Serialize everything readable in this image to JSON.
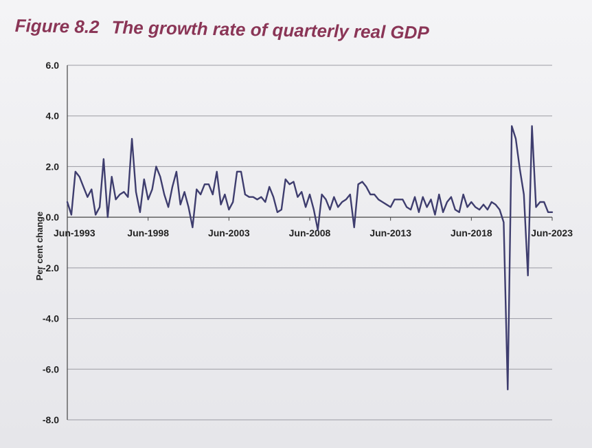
{
  "figure": {
    "number": "Figure 8.2",
    "caption": "The growth rate of quarterly real GDP"
  },
  "colors": {
    "title": "#8a3556",
    "line": "#3e3d6e",
    "grid": "#9a9aa2",
    "text": "#222222"
  },
  "chart_data": {
    "type": "line",
    "title": "The growth rate of quarterly real GDP",
    "xlabel": "",
    "ylabel": "Per cent change",
    "ylim": [
      -8.0,
      6.0
    ],
    "yticks": [
      "6.0",
      "4.0",
      "2.0",
      "0.0",
      "-2.0",
      "-4.0",
      "-6.0",
      "-8.0"
    ],
    "xtick_labels": [
      "Jun-1993",
      "Jun-1998",
      "Jun-2003",
      "Jun-2008",
      "Jun-2013",
      "Jun-2018",
      "Jun-2023"
    ],
    "grid": true,
    "x": [
      "Jun-1993",
      "Sep-1993",
      "Dec-1993",
      "Mar-1994",
      "Jun-1994",
      "Sep-1994",
      "Dec-1994",
      "Mar-1995",
      "Jun-1995",
      "Sep-1995",
      "Dec-1995",
      "Mar-1996",
      "Jun-1996",
      "Sep-1996",
      "Dec-1996",
      "Mar-1997",
      "Jun-1997",
      "Sep-1997",
      "Dec-1997",
      "Mar-1998",
      "Jun-1998",
      "Sep-1998",
      "Dec-1998",
      "Mar-1999",
      "Jun-1999",
      "Sep-1999",
      "Dec-1999",
      "Mar-2000",
      "Jun-2000",
      "Sep-2000",
      "Dec-2000",
      "Mar-2001",
      "Jun-2001",
      "Sep-2001",
      "Dec-2001",
      "Mar-2002",
      "Jun-2002",
      "Sep-2002",
      "Dec-2002",
      "Mar-2003",
      "Jun-2003",
      "Sep-2003",
      "Dec-2003",
      "Mar-2004",
      "Jun-2004",
      "Sep-2004",
      "Dec-2004",
      "Mar-2005",
      "Jun-2005",
      "Sep-2005",
      "Dec-2005",
      "Mar-2006",
      "Jun-2006",
      "Sep-2006",
      "Dec-2006",
      "Mar-2007",
      "Jun-2007",
      "Sep-2007",
      "Dec-2007",
      "Mar-2008",
      "Jun-2008",
      "Sep-2008",
      "Dec-2008",
      "Mar-2009",
      "Jun-2009",
      "Sep-2009",
      "Dec-2009",
      "Mar-2010",
      "Jun-2010",
      "Sep-2010",
      "Dec-2010",
      "Mar-2011",
      "Jun-2011",
      "Sep-2011",
      "Dec-2011",
      "Mar-2012",
      "Jun-2012",
      "Sep-2012",
      "Dec-2012",
      "Mar-2013",
      "Jun-2013",
      "Sep-2013",
      "Dec-2013",
      "Mar-2014",
      "Jun-2014",
      "Sep-2014",
      "Dec-2014",
      "Mar-2015",
      "Jun-2015",
      "Sep-2015",
      "Dec-2015",
      "Mar-2016",
      "Jun-2016",
      "Sep-2016",
      "Dec-2016",
      "Mar-2017",
      "Jun-2017",
      "Sep-2017",
      "Dec-2017",
      "Mar-2018",
      "Jun-2018",
      "Sep-2018",
      "Dec-2018",
      "Mar-2019",
      "Jun-2019",
      "Sep-2019",
      "Dec-2019",
      "Mar-2020",
      "Jun-2020",
      "Sep-2020",
      "Dec-2020",
      "Mar-2021",
      "Jun-2021",
      "Sep-2021",
      "Dec-2021",
      "Mar-2022",
      "Jun-2022",
      "Sep-2022",
      "Dec-2022",
      "Mar-2023",
      "Jun-2023"
    ],
    "series": [
      {
        "values": [
          0.6,
          0.1,
          1.8,
          1.6,
          1.2,
          0.8,
          1.1,
          0.1,
          0.4,
          2.3,
          0.0,
          1.6,
          0.7,
          0.9,
          1.0,
          0.8,
          3.1,
          1.0,
          0.2,
          1.5,
          0.7,
          1.1,
          2.0,
          1.6,
          0.9,
          0.4,
          1.2,
          1.8,
          0.5,
          1.0,
          0.4,
          -0.4,
          1.1,
          0.9,
          1.3,
          1.3,
          0.9,
          1.8,
          0.5,
          0.9,
          0.3,
          0.6,
          1.8,
          1.8,
          0.9,
          0.8,
          0.8,
          0.7,
          0.8,
          0.6,
          1.2,
          0.8,
          0.2,
          0.3,
          1.5,
          1.3,
          1.4,
          0.8,
          1.0,
          0.4,
          0.9,
          0.3,
          -0.5,
          0.9,
          0.7,
          0.3,
          0.8,
          0.4,
          0.6,
          0.7,
          0.9,
          -0.4,
          1.3,
          1.4,
          1.2,
          0.9,
          0.9,
          0.7,
          0.6,
          0.5,
          0.4,
          0.7,
          0.7,
          0.7,
          0.4,
          0.3,
          0.8,
          0.2,
          0.8,
          0.4,
          0.7,
          0.1,
          0.9,
          0.2,
          0.6,
          0.8,
          0.3,
          0.2,
          0.9,
          0.4,
          0.6,
          0.4,
          0.3,
          0.5,
          0.3,
          0.6,
          0.5,
          0.3,
          -0.2,
          -6.8,
          3.6,
          3.1,
          1.9,
          0.9,
          -2.3,
          3.6,
          0.4,
          0.6,
          0.6,
          0.2,
          0.2
        ]
      }
    ]
  }
}
